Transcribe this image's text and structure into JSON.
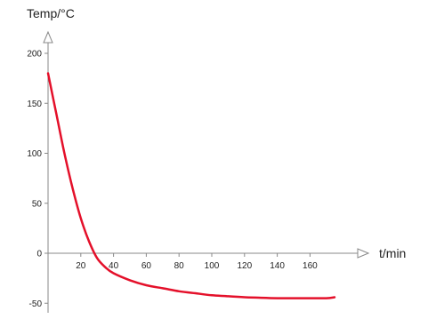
{
  "chart_data": {
    "type": "line",
    "ylabel": "Temp/°C",
    "xlabel": "t/min",
    "xlim": [
      0,
      180
    ],
    "ylim": [
      -60,
      210
    ],
    "x_ticks": [
      20,
      40,
      60,
      80,
      100,
      120,
      140,
      160
    ],
    "y_ticks": [
      -50,
      0,
      50,
      100,
      150,
      200
    ],
    "grid": false,
    "legend": "none",
    "series": [
      {
        "color": "#e4102a",
        "x": [
          0,
          5,
          10,
          15,
          20,
          25,
          30,
          35,
          40,
          50,
          60,
          70,
          80,
          90,
          100,
          110,
          120,
          130,
          140,
          150,
          160,
          170,
          175
        ],
        "y": [
          180,
          140,
          100,
          65,
          35,
          12,
          -5,
          -14,
          -20,
          -27,
          -32,
          -35,
          -38,
          -40,
          -42,
          -43,
          -44,
          -44.5,
          -45,
          -45,
          -45,
          -45,
          -44
        ]
      }
    ]
  }
}
